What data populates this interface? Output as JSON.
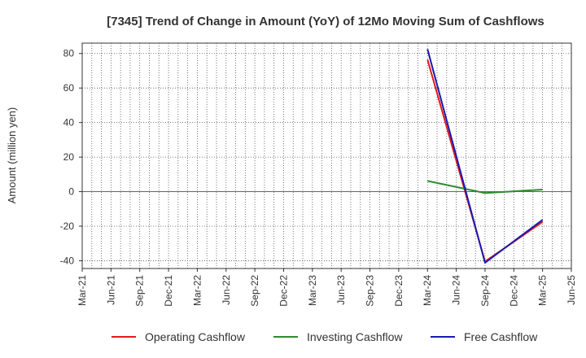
{
  "chart_data": {
    "type": "line",
    "title": "[7345]  Trend of Change in Amount (YoY) of 12Mo Moving Sum of Cashflows",
    "xlabel": "",
    "ylabel": "Amount (million yen)",
    "x_ticks": [
      "Mar-21",
      "Jun-21",
      "Sep-21",
      "Dec-21",
      "Mar-22",
      "Jun-22",
      "Sep-22",
      "Dec-22",
      "Mar-23",
      "Jun-23",
      "Sep-23",
      "Dec-23",
      "Mar-24",
      "Jun-24",
      "Sep-24",
      "Dec-24",
      "Mar-25",
      "Jun-25"
    ],
    "y_ticks": [
      -40,
      -20,
      0,
      20,
      40,
      60,
      80
    ],
    "ylim": [
      -44.5,
      86
    ],
    "grid": true,
    "legend_position": "bottom",
    "series": [
      {
        "name": "Operating Cashflow",
        "color": "#e41a1c",
        "points": [
          {
            "x": "Mar-24",
            "y": 76.5
          },
          {
            "x": "Sep-24",
            "y": -40.5
          },
          {
            "x": "Mar-25",
            "y": -17.5
          }
        ]
      },
      {
        "name": "Investing Cashflow",
        "color": "#2e8b2e",
        "points": [
          {
            "x": "Mar-24",
            "y": 6.2
          },
          {
            "x": "Sep-24",
            "y": -0.8
          },
          {
            "x": "Mar-25",
            "y": 1.2
          }
        ]
      },
      {
        "name": "Free Cashflow",
        "color": "#1a1ab4",
        "points": [
          {
            "x": "Mar-24",
            "y": 82.5
          },
          {
            "x": "Sep-24",
            "y": -41.2
          },
          {
            "x": "Mar-25",
            "y": -16.3
          }
        ]
      }
    ]
  }
}
